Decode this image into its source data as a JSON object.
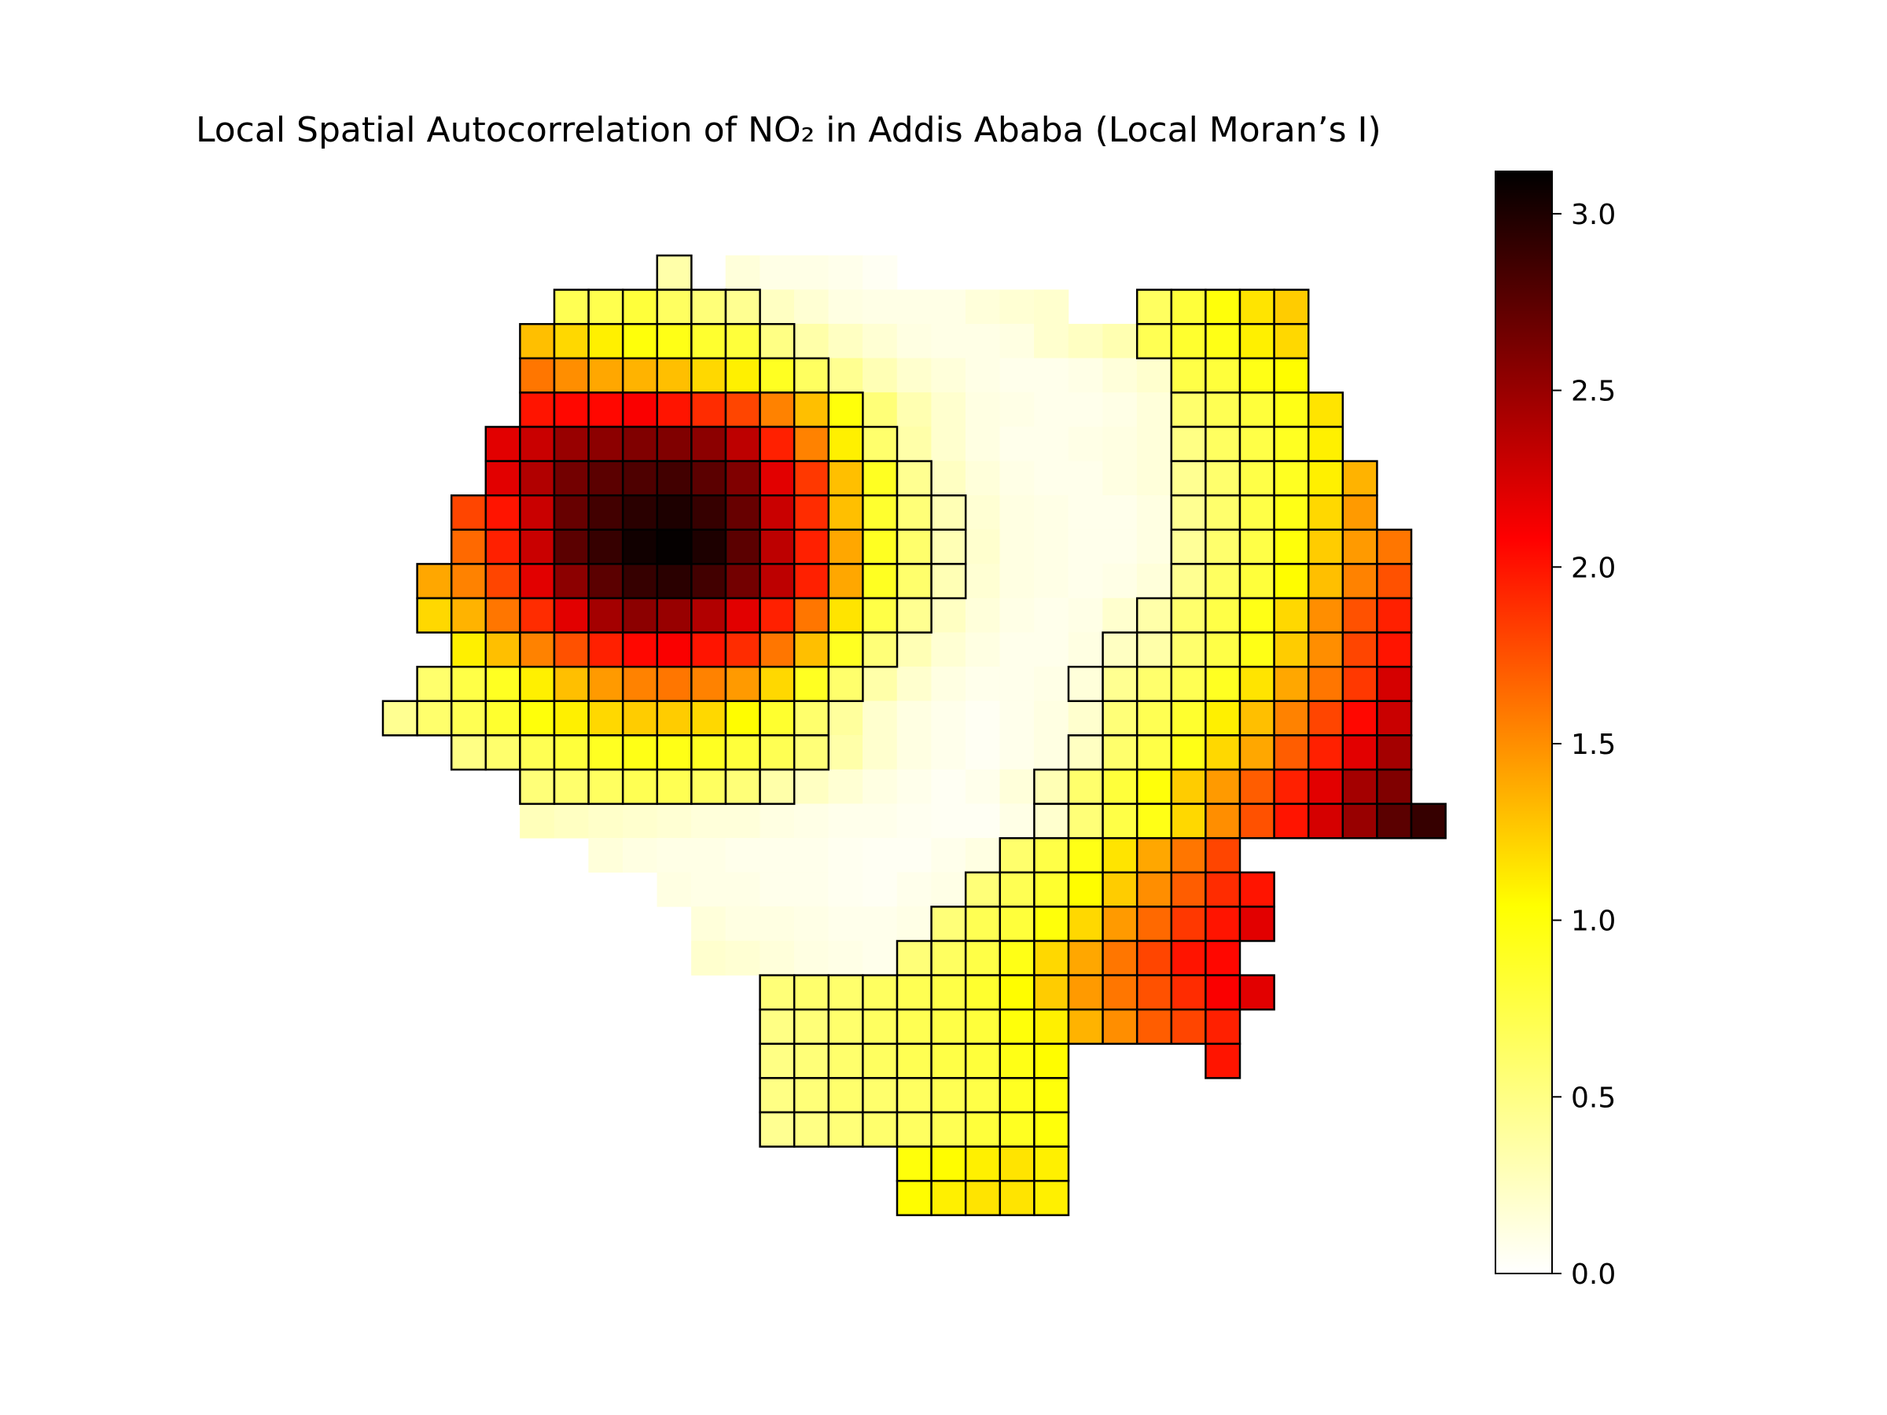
{
  "title": "Local Spatial Autocorrelation of NO₂ in Addis Ababa (Local Moran’s I)",
  "colormap": "hot_r",
  "colormap_stops": [
    "#ffffff",
    "#ffff00",
    "#ff0000",
    "#000000"
  ],
  "edge_color": "#000000",
  "colorbar": {
    "min": 0.0,
    "max": 3.12,
    "ticks": [
      "0.0",
      "0.5",
      "1.0",
      "1.5",
      "2.0",
      "2.5",
      "3.0"
    ]
  },
  "chart_data": {
    "type": "heatmap",
    "title": "Local Spatial Autocorrelation of NO₂ in Addis Ababa (Local Moran’s I)",
    "value_range": [
      0.0,
      3.12
    ],
    "cell_outline": "cells drawn with black outlines are significant; unoutlined cells are not",
    "rows": [
      {
        "row": 0,
        "start": 8,
        "values": [
          0.35,
          null,
          0.15,
          0.1,
          0.1,
          0.08,
          0.05
        ]
      },
      {
        "row": 1,
        "start": 5,
        "values": [
          0.7,
          0.72,
          0.8,
          0.65,
          0.55,
          0.45,
          0.25,
          0.18,
          0.12,
          0.1,
          0.1,
          0.1,
          0.15,
          0.18,
          0.2,
          null,
          null,
          0.65,
          0.8,
          1.0,
          1.15,
          1.25
        ]
      },
      {
        "row": 2,
        "start": 4,
        "values": [
          1.3,
          1.2,
          1.1,
          1.0,
          0.95,
          0.85,
          0.8,
          0.5,
          0.35,
          0.25,
          0.18,
          0.12,
          0.1,
          0.1,
          0.12,
          0.2,
          0.25,
          0.32,
          0.7,
          0.85,
          0.95,
          1.1,
          1.2
        ]
      },
      {
        "row": 3,
        "start": 4,
        "values": [
          1.6,
          1.5,
          1.4,
          1.35,
          1.3,
          1.2,
          1.1,
          0.9,
          0.65,
          0.45,
          0.3,
          0.2,
          0.15,
          0.1,
          0.08,
          0.08,
          0.1,
          0.15,
          0.2,
          0.75,
          0.8,
          0.95,
          1.05
        ]
      },
      {
        "row": 4,
        "start": 4,
        "values": [
          2.0,
          2.05,
          2.05,
          2.1,
          2.0,
          1.9,
          1.8,
          1.55,
          1.3,
          1.0,
          0.55,
          0.32,
          0.2,
          0.12,
          0.1,
          0.08,
          0.08,
          0.1,
          0.15,
          0.6,
          0.7,
          0.8,
          0.95,
          1.15
        ]
      },
      {
        "row": 5,
        "start": 3,
        "values": [
          2.2,
          2.3,
          2.5,
          2.55,
          2.6,
          2.6,
          2.55,
          2.35,
          1.95,
          1.55,
          1.1,
          0.6,
          0.35,
          0.2,
          0.12,
          0.08,
          0.08,
          0.1,
          0.12,
          0.15,
          0.5,
          0.65,
          0.75,
          0.9,
          1.1
        ]
      },
      {
        "row": 6,
        "start": 3,
        "values": [
          2.2,
          2.4,
          2.65,
          2.75,
          2.8,
          2.85,
          2.75,
          2.6,
          2.2,
          1.85,
          1.3,
          0.9,
          0.45,
          0.25,
          0.15,
          0.1,
          0.08,
          0.08,
          0.12,
          0.15,
          0.45,
          0.6,
          0.75,
          0.9,
          1.1,
          1.35
        ]
      },
      {
        "row": 7,
        "start": 2,
        "values": [
          1.8,
          2.0,
          2.3,
          2.7,
          2.85,
          2.95,
          3.0,
          2.9,
          2.7,
          2.3,
          1.9,
          1.3,
          0.85,
          0.55,
          0.3,
          0.18,
          0.12,
          0.1,
          0.08,
          0.08,
          0.12,
          0.45,
          0.6,
          0.75,
          0.95,
          1.2,
          1.45
        ]
      },
      {
        "row": 8,
        "start": 2,
        "values": [
          1.65,
          1.95,
          2.3,
          2.75,
          2.9,
          3.05,
          3.1,
          3.0,
          2.75,
          2.35,
          1.95,
          1.4,
          0.9,
          0.6,
          0.3,
          0.2,
          0.12,
          0.1,
          0.08,
          0.08,
          0.12,
          0.42,
          0.6,
          0.75,
          1.0,
          1.25,
          1.45,
          1.6
        ]
      },
      {
        "row": 9,
        "start": 1,
        "values": [
          1.4,
          1.55,
          1.8,
          2.2,
          2.55,
          2.75,
          2.9,
          2.95,
          2.85,
          2.65,
          2.35,
          1.95,
          1.4,
          0.9,
          0.6,
          0.3,
          0.18,
          0.12,
          0.1,
          0.08,
          0.1,
          0.15,
          0.45,
          0.65,
          0.8,
          1.05,
          1.3,
          1.55,
          1.75
        ]
      },
      {
        "row": 10,
        "start": 1,
        "values": [
          1.2,
          1.35,
          1.6,
          1.9,
          2.2,
          2.45,
          2.55,
          2.5,
          2.4,
          2.2,
          1.95,
          1.6,
          1.15,
          0.75,
          0.45,
          0.25,
          0.15,
          0.1,
          0.08,
          0.1,
          0.2,
          0.35,
          0.6,
          0.75,
          0.95,
          1.2,
          1.5,
          1.75,
          1.95
        ]
      },
      {
        "row": 11,
        "start": 2,
        "values": [
          1.1,
          1.3,
          1.55,
          1.75,
          1.95,
          2.05,
          2.1,
          2.0,
          1.9,
          1.6,
          1.3,
          0.9,
          0.55,
          0.3,
          0.18,
          0.12,
          0.08,
          0.08,
          0.12,
          0.25,
          0.35,
          0.6,
          0.75,
          0.95,
          1.25,
          1.5,
          1.8,
          2.0
        ]
      },
      {
        "row": 12,
        "start": 1,
        "values": [
          0.6,
          0.75,
          0.9,
          1.1,
          1.3,
          1.45,
          1.55,
          1.6,
          1.55,
          1.45,
          1.2,
          0.9,
          0.6,
          0.35,
          0.2,
          0.12,
          0.08,
          0.08,
          0.1,
          0.15,
          0.45,
          0.6,
          0.7,
          0.9,
          1.15,
          1.4,
          1.6,
          1.85,
          2.25
        ]
      },
      {
        "row": 13,
        "start": 0,
        "values": [
          0.45,
          0.6,
          0.7,
          0.85,
          1.0,
          1.1,
          1.2,
          1.25,
          1.25,
          1.2,
          1.05,
          0.85,
          0.6,
          0.4,
          0.2,
          0.12,
          0.08,
          0.05,
          0.08,
          0.12,
          0.2,
          0.55,
          0.7,
          0.85,
          1.1,
          1.3,
          1.55,
          1.8,
          2.05,
          2.3
        ]
      },
      {
        "row": 14,
        "start": 2,
        "values": [
          0.5,
          0.6,
          0.7,
          0.8,
          0.9,
          0.95,
          0.95,
          0.9,
          0.8,
          0.7,
          0.55,
          0.35,
          0.2,
          0.12,
          0.08,
          0.05,
          0.08,
          0.12,
          0.25,
          0.6,
          0.75,
          0.95,
          1.2,
          1.4,
          1.7,
          1.95,
          2.2,
          2.45
        ]
      },
      {
        "row": 15,
        "start": 4,
        "values": [
          0.55,
          0.6,
          0.65,
          0.7,
          0.7,
          0.65,
          0.55,
          0.35,
          0.25,
          0.18,
          0.12,
          0.08,
          0.05,
          0.08,
          0.15,
          0.3,
          0.6,
          0.8,
          1.0,
          1.25,
          1.45,
          1.7,
          1.95,
          2.2,
          2.45,
          2.6
        ]
      },
      {
        "row": 16,
        "start": 4,
        "values": [
          0.28,
          0.25,
          0.22,
          0.2,
          0.18,
          0.15,
          0.15,
          0.12,
          0.1,
          0.08,
          0.08,
          0.06,
          0.05,
          0.05,
          0.1,
          0.2,
          0.55,
          0.75,
          0.95,
          1.2,
          1.5,
          1.75,
          2.0,
          2.25,
          2.5,
          2.75,
          2.9
        ]
      },
      {
        "row": 17,
        "start": 6,
        "values": [
          0.15,
          0.12,
          0.1,
          0.1,
          0.08,
          0.08,
          0.08,
          0.06,
          0.05,
          0.05,
          0.08,
          0.12,
          0.6,
          0.75,
          0.95,
          1.15,
          1.4,
          1.6,
          1.8
        ]
      },
      {
        "row": 18,
        "start": 8,
        "values": [
          0.12,
          0.1,
          0.1,
          0.08,
          0.08,
          0.06,
          0.05,
          0.08,
          0.1,
          0.55,
          0.7,
          0.85,
          1.05,
          1.25,
          1.5,
          1.7,
          1.9,
          2.0
        ]
      },
      {
        "row": 19,
        "start": 9,
        "values": [
          0.15,
          0.12,
          0.12,
          0.1,
          0.08,
          0.08,
          0.1,
          0.55,
          0.7,
          0.8,
          1.0,
          1.2,
          1.45,
          1.65,
          1.85,
          2.0,
          2.2
        ]
      },
      {
        "row": 20,
        "start": 9,
        "values": [
          0.2,
          0.18,
          0.15,
          0.12,
          0.1,
          0.08,
          0.55,
          0.65,
          0.75,
          0.95,
          1.2,
          1.4,
          1.6,
          1.8,
          2.0,
          2.05
        ]
      },
      {
        "row": 21,
        "start": 11,
        "values": [
          0.55,
          0.6,
          0.6,
          0.65,
          0.7,
          0.75,
          0.85,
          1.05,
          1.25,
          1.45,
          1.6,
          1.75,
          1.9,
          2.1,
          2.2
        ]
      },
      {
        "row": 22,
        "start": 11,
        "values": [
          0.5,
          0.55,
          0.6,
          0.65,
          0.7,
          0.75,
          0.8,
          1.0,
          1.1,
          1.35,
          1.5,
          1.7,
          1.8,
          1.95
        ]
      },
      {
        "row": 23,
        "start": 11,
        "values": [
          0.5,
          0.55,
          0.6,
          0.65,
          0.7,
          0.75,
          0.8,
          0.95,
          1.05,
          null,
          null,
          null,
          null,
          2.0
        ]
      },
      {
        "row": 24,
        "start": 11,
        "values": [
          0.5,
          0.55,
          0.6,
          0.6,
          0.65,
          0.7,
          0.75,
          0.9,
          1.0
        ]
      },
      {
        "row": 25,
        "start": 11,
        "values": [
          0.45,
          0.5,
          0.55,
          0.6,
          0.65,
          0.7,
          0.8,
          0.9,
          1.0
        ]
      },
      {
        "row": 26,
        "start": 15,
        "values": [
          1.0,
          1.05,
          1.1,
          1.15,
          1.1
        ]
      },
      {
        "row": 27,
        "start": 15,
        "values": [
          1.05,
          1.1,
          1.15,
          1.15,
          1.1
        ]
      }
    ],
    "non_outlined": {
      "0": [
        10,
        11,
        12,
        13,
        14
      ],
      "1": [
        11,
        12,
        13,
        14,
        15,
        16,
        17,
        18,
        19
      ],
      "2": [
        12,
        13,
        14,
        15,
        16,
        17,
        18,
        19,
        20,
        21
      ],
      "3": [
        13,
        14,
        15,
        16,
        17,
        18,
        19,
        20,
        21,
        22
      ],
      "4": [
        14,
        15,
        16,
        17,
        18,
        19,
        20,
        21,
        22
      ],
      "5": [
        15,
        16,
        17,
        18,
        19,
        20,
        21,
        22
      ],
      "6": [
        16,
        17,
        18,
        19,
        20,
        21,
        22
      ],
      "7": [
        17,
        18,
        19,
        20,
        21,
        22
      ],
      "8": [
        17,
        18,
        19,
        20,
        21,
        22
      ],
      "9": [
        17,
        18,
        19,
        20,
        21,
        22
      ],
      "10": [
        16,
        17,
        18,
        19,
        20,
        21
      ],
      "11": [
        15,
        16,
        17,
        18,
        19,
        20
      ],
      "12": [
        14,
        15,
        16,
        17,
        18,
        19
      ],
      "13": [
        13,
        14,
        15,
        16,
        17,
        18,
        19,
        20
      ],
      "14": [
        13,
        14,
        15,
        16,
        17,
        18,
        19
      ],
      "15": [
        12,
        13,
        14,
        15,
        16,
        17,
        18
      ],
      "16": [
        4,
        5,
        6,
        7,
        8,
        9,
        10,
        11,
        12,
        13,
        14,
        15,
        16,
        17,
        18
      ],
      "17": [
        6,
        7,
        8,
        9,
        10,
        11,
        12,
        13,
        14,
        15,
        16,
        17
      ],
      "18": [
        8,
        9,
        10,
        11,
        12,
        13,
        14,
        15,
        16
      ],
      "19": [
        9,
        10,
        11,
        12,
        13,
        14,
        15
      ],
      "20": [
        9,
        10,
        11,
        12,
        13,
        14
      ]
    }
  }
}
